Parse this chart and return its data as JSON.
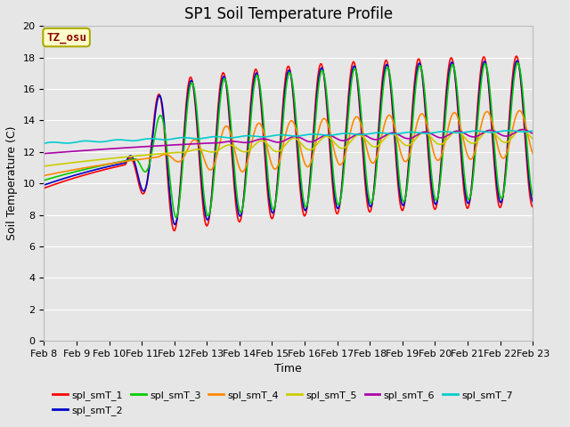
{
  "title": "SP1 Soil Temperature Profile",
  "xlabel": "Time",
  "ylabel": "Soil Temperature (C)",
  "ylim": [
    0,
    20
  ],
  "xlim": [
    0,
    15
  ],
  "background_color": "#e6e6e6",
  "plot_bg_color": "#e6e6e6",
  "grid_color": "#ffffff",
  "annotation_text": "TZ_osu",
  "annotation_color": "#8B0000",
  "annotation_bg": "#ffffcc",
  "annotation_border": "#aaaa00",
  "series_colors": {
    "spl_smT_1": "#ff0000",
    "spl_smT_2": "#0000cc",
    "spl_smT_3": "#00cc00",
    "spl_smT_4": "#ff8800",
    "spl_smT_5": "#cccc00",
    "spl_smT_6": "#aa00aa",
    "spl_smT_7": "#00cccc"
  },
  "linewidth": 1.2,
  "n_points": 720,
  "xtick_labels": [
    "Feb 8",
    "Feb 9",
    "Feb 10",
    "Feb 11",
    "Feb 12",
    "Feb 13",
    "Feb 14",
    "Feb 15",
    "Feb 16",
    "Feb 17",
    "Feb 18",
    "Feb 19",
    "Feb 20",
    "Feb 21",
    "Feb 22",
    "Feb 23"
  ],
  "ytick_vals": [
    0,
    2,
    4,
    6,
    8,
    10,
    12,
    14,
    16,
    18,
    20
  ],
  "title_fontsize": 12,
  "label_fontsize": 9,
  "tick_fontsize": 8,
  "legend_fontsize": 8
}
